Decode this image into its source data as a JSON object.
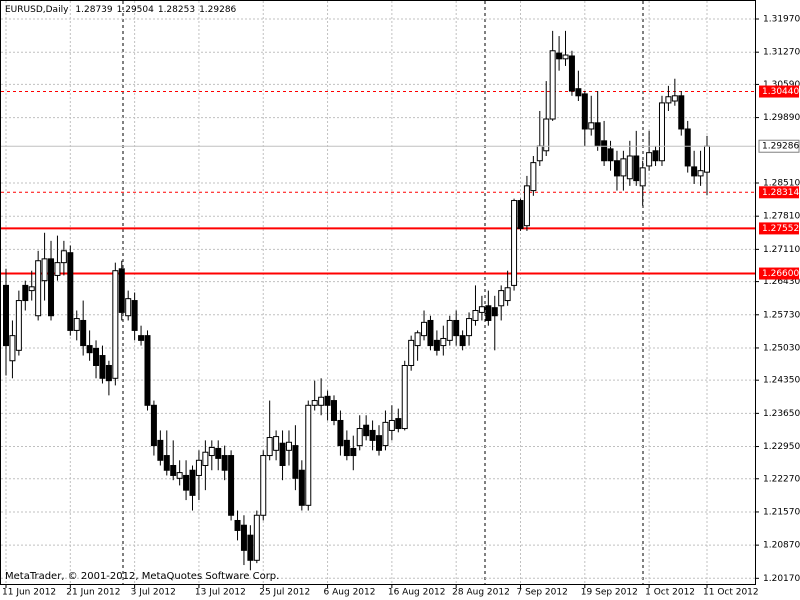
{
  "chart_data": {
    "type": "candlestick",
    "title": "EURUSD,Daily",
    "footer": "MetaTrader, © 2001-2012, MetaQuotes Software Corp.",
    "categories": [
      "11 Jun 2012",
      null,
      null,
      null,
      null,
      null,
      null,
      null,
      null,
      null,
      "21 Jun 2012",
      null,
      null,
      null,
      null,
      null,
      null,
      null,
      null,
      null,
      "3 Jul 2012",
      null,
      null,
      null,
      null,
      null,
      null,
      null,
      null,
      null,
      "13 Jul 2012",
      null,
      null,
      null,
      null,
      null,
      null,
      null,
      null,
      null,
      "25 Jul 2012",
      null,
      null,
      null,
      null,
      null,
      null,
      null,
      null,
      null,
      "6 Aug 2012",
      null,
      null,
      null,
      null,
      null,
      null,
      null,
      null,
      null,
      "16 Aug 2012",
      null,
      null,
      null,
      null,
      null,
      null,
      null,
      null,
      null,
      "28 Aug 2012",
      null,
      null,
      null,
      null,
      null,
      null,
      null,
      null,
      null,
      "7 Sep 2012",
      null,
      null,
      null,
      null,
      null,
      null,
      null,
      null,
      null,
      "19 Sep 2012",
      null,
      null,
      null,
      null,
      null,
      null,
      null,
      null,
      null,
      "1 Oct 2012",
      null,
      null,
      null,
      null,
      null,
      null,
      null,
      null,
      "11 Oct 2012"
    ],
    "open": [
      1.2635,
      1.2476,
      1.2498,
      1.2635,
      1.2624,
      1.2571,
      1.2645,
      1.2691,
      1.2656,
      1.2683,
      1.2704,
      1.254,
      1.2561,
      1.2508,
      1.2502,
      1.2487,
      1.2466,
      1.2439,
      1.267,
      1.2571,
      1.2603,
      1.2529,
      1.2529,
      1.2382,
      1.2308,
      1.2276,
      1.2255,
      1.2228,
      1.2234,
      1.2245,
      1.2234,
      1.2255,
      1.2276,
      1.2291,
      1.2276,
      1.2276,
      1.2139,
      1.2129,
      1.2108,
      1.2055,
      1.215,
      1.2276,
      1.2287,
      1.2302,
      1.2287,
      1.2297,
      1.2245,
      1.2171,
      1.2382,
      1.2382,
      1.2401,
      1.2392,
      1.235,
      1.2308,
      1.2291,
      1.2297,
      1.234,
      1.2329,
      1.2318,
      1.2297,
      1.2329,
      1.2354,
      1.2333,
      1.2466,
      1.2508,
      1.2529,
      1.2561,
      1.2519,
      1.2508,
      1.2519,
      1.2561,
      1.2529,
      1.2529,
      1.2561,
      1.2578,
      1.2592,
      1.2588,
      1.2592,
      1.2603,
      1.2635,
      1.2814,
      1.2761,
      1.2835,
      1.2898,
      1.2919,
      1.2986,
      1.3125,
      1.3113,
      1.3119,
      1.305,
      1.3039,
      1.2965,
      1.2978,
      1.294,
      1.2923,
      1.2898,
      1.2866,
      1.286,
      1.2908,
      1.2845,
      1.2887,
      1.2919,
      1.2898,
      1.302,
      1.3024,
      1.3035,
      1.2965,
      1.2885,
      1.2866,
      1.28739
    ],
    "high": [
      1.267,
      1.2561,
      1.2624,
      1.2645,
      1.2666,
      1.2708,
      1.2746,
      1.2729,
      1.274,
      1.2729,
      1.2719,
      1.2582,
      1.2603,
      1.254,
      1.2519,
      1.2508,
      1.2476,
      1.2683,
      1.2687,
      1.2624,
      1.262,
      1.255,
      1.254,
      1.2392,
      1.2329,
      1.2329,
      1.2308,
      1.2266,
      1.2266,
      1.2255,
      1.2287,
      1.2308,
      1.2308,
      1.2308,
      1.2297,
      1.2287,
      1.216,
      1.215,
      1.2129,
      1.216,
      1.2287,
      1.2392,
      1.2329,
      1.2329,
      1.2329,
      1.234,
      1.2266,
      1.2392,
      1.2434,
      1.2439,
      1.2413,
      1.2403,
      1.2371,
      1.2329,
      1.2318,
      1.2361,
      1.2361,
      1.235,
      1.234,
      1.2371,
      1.2382,
      1.2375,
      1.2476,
      1.2529,
      1.254,
      1.2582,
      1.2571,
      1.254,
      1.255,
      1.2571,
      1.2582,
      1.254,
      1.2578,
      1.2635,
      1.2613,
      1.2624,
      1.2613,
      1.2635,
      1.2666,
      1.2818,
      1.2818,
      1.2866,
      1.2908,
      1.3003,
      1.3066,
      1.3172,
      1.3161,
      1.3172,
      1.313,
      1.3088,
      1.3045,
      1.3035,
      1.3045,
      1.2982,
      1.294,
      1.2919,
      1.2919,
      1.294,
      1.2961,
      1.2898,
      1.2961,
      1.2929,
      1.3035,
      1.3056,
      1.3071,
      1.3045,
      1.2982,
      1.2919,
      1.2919,
      1.29504
    ],
    "low": [
      1.2445,
      1.2439,
      1.2487,
      1.2582,
      1.2603,
      1.2561,
      1.2603,
      1.2561,
      1.2645,
      1.2656,
      1.2529,
      1.2519,
      1.2487,
      1.2476,
      1.2439,
      1.2428,
      1.2403,
      1.2424,
      1.2561,
      1.2561,
      1.2519,
      1.2508,
      1.2371,
      1.2276,
      1.2255,
      1.2234,
      1.2224,
      1.2213,
      1.2182,
      1.216,
      1.2182,
      1.2203,
      1.2245,
      1.2245,
      1.2224,
      1.2139,
      1.2097,
      1.2045,
      1.2034,
      1.2049,
      1.2139,
      1.2266,
      1.2266,
      1.2224,
      1.2255,
      1.2203,
      1.216,
      1.216,
      1.2371,
      1.2361,
      1.235,
      1.234,
      1.2276,
      1.2266,
      1.2245,
      1.2287,
      1.2308,
      1.2287,
      1.2276,
      1.2287,
      1.2308,
      1.2325,
      1.2329,
      1.2455,
      1.2476,
      1.2519,
      1.2498,
      1.2487,
      1.2487,
      1.2508,
      1.2508,
      1.2498,
      1.2508,
      1.255,
      1.2561,
      1.255,
      1.2498,
      1.2561,
      1.2592,
      1.2624,
      1.275,
      1.275,
      1.2824,
      1.2887,
      1.2908,
      1.2982,
      1.3088,
      1.3098,
      1.3035,
      1.3024,
      1.2929,
      1.2951,
      1.2919,
      1.2887,
      1.2877,
      1.2835,
      1.2835,
      1.2845,
      1.2845,
      1.2803,
      1.2877,
      1.2887,
      1.2887,
      1.3003,
      1.3014,
      1.2951,
      1.2873,
      1.2849,
      1.2845,
      1.28253
    ],
    "close": [
      1.2508,
      1.2529,
      1.2603,
      1.2603,
      1.2632,
      1.2687,
      1.2691,
      1.2571,
      1.2683,
      1.2708,
      1.254,
      1.2565,
      1.2508,
      1.2493,
      1.2466,
      1.2439,
      1.2434,
      1.2666,
      1.2578,
      1.2607,
      1.254,
      1.2519,
      1.2382,
      1.2297,
      1.2266,
      1.2245,
      1.2234,
      1.224,
      1.2203,
      1.2192,
      1.2266,
      1.2283,
      1.2293,
      1.227,
      1.2245,
      1.215,
      1.2118,
      1.2076,
      1.2055,
      1.215,
      1.2276,
      1.2314,
      1.2316,
      1.2255,
      1.2304,
      1.2228,
      1.2171,
      1.2382,
      1.2392,
      1.2399,
      1.2382,
      1.235,
      1.2297,
      1.2276,
      1.2276,
      1.2333,
      1.2318,
      1.2308,
      1.2287,
      1.2346,
      1.235,
      1.2333,
      1.2466,
      1.2519,
      1.2535,
      1.2557,
      1.2508,
      1.2498,
      1.2523,
      1.2561,
      1.2529,
      1.2508,
      1.2565,
      1.2582,
      1.259,
      1.2561,
      1.2571,
      1.2624,
      1.263,
      1.2814,
      1.2755,
      1.2845,
      1.2894,
      1.2929,
      1.2986,
      1.313,
      1.3113,
      1.3121,
      1.3045,
      1.3035,
      1.2965,
      1.2978,
      1.2929,
      1.2898,
      1.2898,
      1.2866,
      1.2902,
      1.2908,
      1.2856,
      1.2883,
      1.2915,
      1.2898,
      1.302,
      1.3033,
      1.3035,
      1.2965,
      1.2887,
      1.2866,
      1.2877,
      1.29286
    ],
    "up_color": "#ffffff",
    "down_color": "#000000",
    "bid_color": "#c0c0c0",
    "ylim": [
      1.2005,
      1.3235
    ],
    "yticks": [
      {
        "value": 1.3197,
        "label": "1.31970"
      },
      {
        "value": 1.3127,
        "label": "1.31270"
      },
      {
        "value": 1.3059,
        "label": "1.30590"
      },
      {
        "value": 1.2989,
        "label": "1.29890"
      },
      {
        "value": 1.2851,
        "label": "1.28510"
      },
      {
        "value": 1.2781,
        "label": "1.27810"
      },
      {
        "value": 1.2711,
        "label": "1.27110"
      },
      {
        "value": 1.2643,
        "label": "1.26430"
      },
      {
        "value": 1.2573,
        "label": "1.25730"
      },
      {
        "value": 1.2503,
        "label": "1.25030"
      },
      {
        "value": 1.2435,
        "label": "1.24350"
      },
      {
        "value": 1.2365,
        "label": "1.23650"
      },
      {
        "value": 1.2295,
        "label": "1.22950"
      },
      {
        "value": 1.2227,
        "label": "1.22270"
      },
      {
        "value": 1.2157,
        "label": "1.21570"
      },
      {
        "value": 1.2087,
        "label": "1.20870"
      },
      {
        "value": 1.2017,
        "label": "1.20170"
      }
    ],
    "grid": true,
    "hlines": [
      {
        "value": 1.3044,
        "label": "1.30440",
        "color": "#ff0000",
        "style": "dashed"
      },
      {
        "value": 1.28314,
        "label": "1.28314",
        "color": "#ff0000",
        "style": "dashed"
      },
      {
        "value": 1.27552,
        "label": "1.27552",
        "color": "#ff0000",
        "style": "solid"
      },
      {
        "value": 1.266,
        "label": "1.26600",
        "color": "#ff0000",
        "style": "solid"
      }
    ]
  }
}
